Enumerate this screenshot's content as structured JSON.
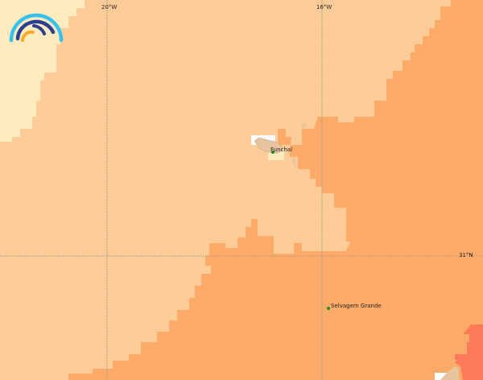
{
  "map": {
    "graticule": {
      "lon_labels": [
        "20°W",
        "16°W"
      ],
      "lat_labels": [
        "31°N"
      ]
    },
    "places": [
      {
        "name": "Funchal"
      },
      {
        "name": "Selvagem Grande"
      }
    ],
    "colors": {
      "lightest": "#FFEBC0",
      "light": "#FECC99",
      "medium": "#FEAA68",
      "high": "#FE7B5A",
      "land": "#E8C4A0",
      "grid": "#9a9a80",
      "place_marker": "#1f8a1f"
    },
    "logo": {
      "icon": "rainbow-arc-logo"
    }
  }
}
